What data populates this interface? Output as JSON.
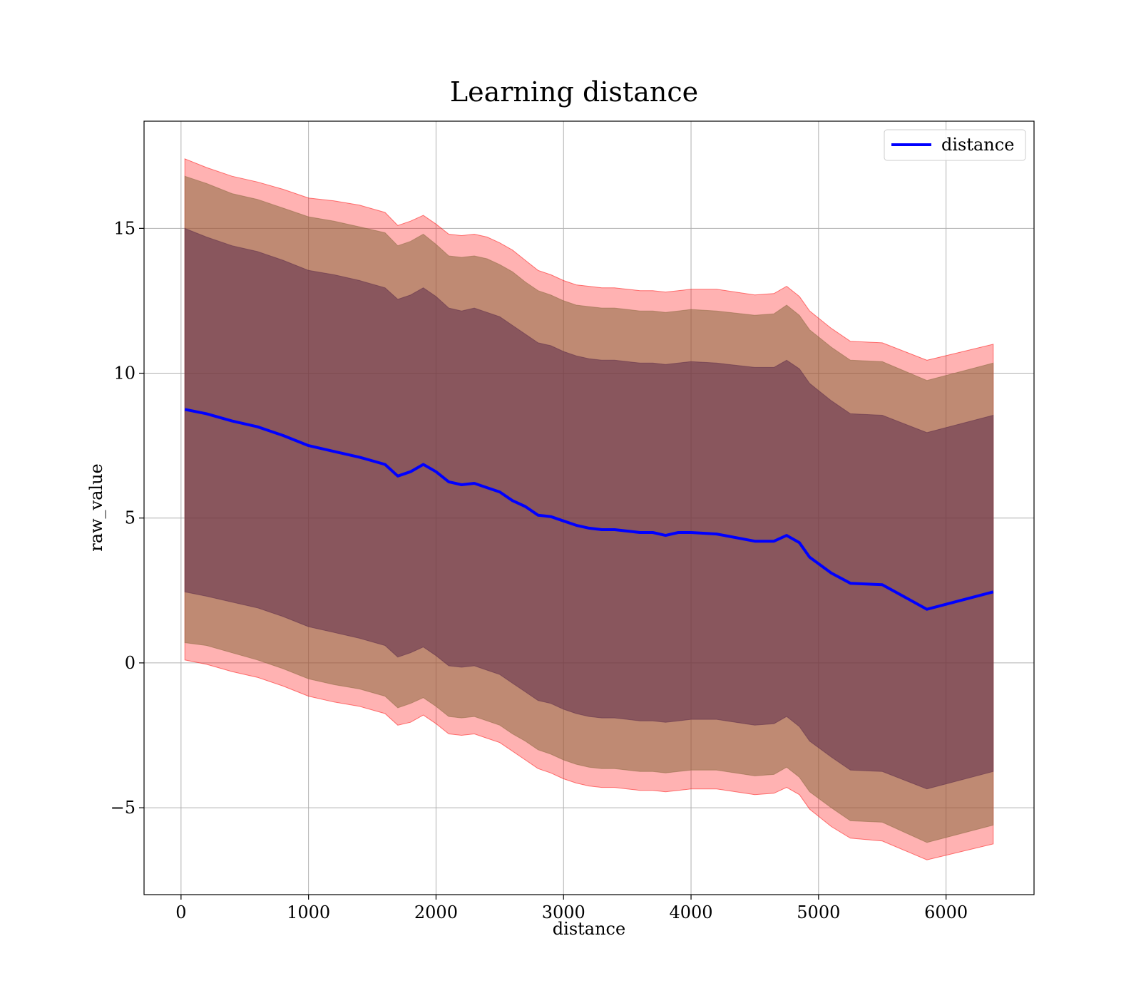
{
  "chart_data": {
    "type": "area",
    "title": "Learning distance",
    "xlabel": "distance",
    "ylabel": "raw_value",
    "xlim": [
      -290,
      6690
    ],
    "ylim": [
      -8,
      18.7
    ],
    "x_ticks": [
      0,
      1000,
      2000,
      3000,
      4000,
      5000,
      6000
    ],
    "x_tick_labels": [
      "0",
      "1000",
      "2000",
      "3000",
      "4000",
      "5000",
      "6000"
    ],
    "y_ticks": [
      -5,
      0,
      5,
      10,
      15
    ],
    "y_tick_labels": [
      "−5",
      "0",
      "5",
      "10",
      "15"
    ],
    "grid": true,
    "legend": {
      "position": "top-right",
      "entries": [
        "distance"
      ]
    },
    "colors": {
      "line": "#0000ff",
      "outer_band": "#ff0000",
      "outer_band_opacity": 0.3,
      "middle_band": "#8b6a3f",
      "inner_band": "#5c2b4a",
      "inner_band_opacity": 0.55
    },
    "x": [
      30,
      200,
      400,
      600,
      800,
      1000,
      1200,
      1400,
      1600,
      1700,
      1800,
      1900,
      2000,
      2100,
      2200,
      2300,
      2400,
      2500,
      2600,
      2700,
      2800,
      2900,
      3000,
      3100,
      3200,
      3300,
      3400,
      3500,
      3600,
      3700,
      3800,
      3900,
      4000,
      4200,
      4500,
      4650,
      4750,
      4850,
      4930,
      5100,
      5250,
      5500,
      5850,
      6370
    ],
    "series": [
      {
        "name": "distance",
        "values": [
          8.75,
          8.6,
          8.35,
          8.15,
          7.85,
          7.5,
          7.3,
          7.1,
          6.85,
          6.45,
          6.6,
          6.85,
          6.6,
          6.25,
          6.15,
          6.2,
          6.05,
          5.9,
          5.6,
          5.4,
          5.1,
          5.05,
          4.9,
          4.75,
          4.65,
          4.6,
          4.6,
          4.55,
          4.5,
          4.5,
          4.4,
          4.5,
          4.5,
          4.45,
          4.2,
          4.2,
          4.4,
          4.15,
          3.65,
          3.1,
          2.75,
          2.7,
          1.85,
          2.45
        ]
      }
    ],
    "bands": [
      {
        "upper": [
          17.4,
          17.1,
          16.8,
          16.6,
          16.35,
          16.05,
          15.95,
          15.8,
          15.55,
          15.1,
          15.25,
          15.45,
          15.15,
          14.8,
          14.75,
          14.8,
          14.7,
          14.5,
          14.25,
          13.9,
          13.55,
          13.4,
          13.2,
          13.05,
          13.0,
          12.95,
          12.95,
          12.9,
          12.85,
          12.85,
          12.8,
          12.85,
          12.9,
          12.9,
          12.7,
          12.75,
          13.0,
          12.65,
          12.15,
          11.55,
          11.1,
          11.05,
          10.45,
          11.0
        ],
        "lower": [
          0.1,
          -0.05,
          -0.3,
          -0.5,
          -0.8,
          -1.15,
          -1.35,
          -1.5,
          -1.75,
          -2.15,
          -2.05,
          -1.8,
          -2.1,
          -2.45,
          -2.5,
          -2.45,
          -2.6,
          -2.75,
          -3.05,
          -3.35,
          -3.65,
          -3.8,
          -4.0,
          -4.15,
          -4.25,
          -4.3,
          -4.3,
          -4.35,
          -4.4,
          -4.4,
          -4.45,
          -4.4,
          -4.35,
          -4.35,
          -4.55,
          -4.5,
          -4.3,
          -4.55,
          -5.05,
          -5.65,
          -6.05,
          -6.15,
          -6.8,
          -6.25
        ]
      },
      {
        "upper": [
          16.8,
          16.55,
          16.2,
          16.0,
          15.7,
          15.4,
          15.25,
          15.05,
          14.85,
          14.4,
          14.55,
          14.8,
          14.45,
          14.05,
          14.0,
          14.05,
          13.95,
          13.75,
          13.5,
          13.15,
          12.85,
          12.7,
          12.5,
          12.35,
          12.3,
          12.25,
          12.25,
          12.2,
          12.15,
          12.15,
          12.1,
          12.15,
          12.2,
          12.15,
          12.0,
          12.05,
          12.35,
          12.0,
          11.5,
          10.9,
          10.45,
          10.4,
          9.75,
          10.35
        ],
        "lower": [
          0.7,
          0.6,
          0.35,
          0.1,
          -0.2,
          -0.55,
          -0.75,
          -0.9,
          -1.15,
          -1.55,
          -1.4,
          -1.2,
          -1.5,
          -1.85,
          -1.9,
          -1.85,
          -2.0,
          -2.15,
          -2.45,
          -2.7,
          -3.0,
          -3.15,
          -3.35,
          -3.5,
          -3.6,
          -3.65,
          -3.65,
          -3.7,
          -3.75,
          -3.75,
          -3.8,
          -3.75,
          -3.7,
          -3.7,
          -3.9,
          -3.85,
          -3.6,
          -3.95,
          -4.45,
          -5.0,
          -5.45,
          -5.5,
          -6.2,
          -5.6
        ]
      },
      {
        "upper": [
          15.0,
          14.7,
          14.4,
          14.2,
          13.9,
          13.55,
          13.4,
          13.2,
          12.95,
          12.55,
          12.7,
          12.95,
          12.65,
          12.25,
          12.15,
          12.25,
          12.1,
          11.95,
          11.65,
          11.35,
          11.05,
          10.95,
          10.75,
          10.6,
          10.5,
          10.45,
          10.45,
          10.4,
          10.35,
          10.35,
          10.3,
          10.35,
          10.4,
          10.35,
          10.2,
          10.2,
          10.45,
          10.15,
          9.65,
          9.05,
          8.6,
          8.55,
          7.95,
          8.55
        ],
        "lower": [
          2.45,
          2.3,
          2.1,
          1.9,
          1.6,
          1.25,
          1.05,
          0.85,
          0.6,
          0.2,
          0.35,
          0.55,
          0.25,
          -0.1,
          -0.15,
          -0.1,
          -0.25,
          -0.4,
          -0.7,
          -1.0,
          -1.3,
          -1.4,
          -1.6,
          -1.75,
          -1.85,
          -1.9,
          -1.9,
          -1.95,
          -2.0,
          -2.0,
          -2.05,
          -2.0,
          -1.95,
          -1.95,
          -2.15,
          -2.1,
          -1.85,
          -2.2,
          -2.7,
          -3.25,
          -3.7,
          -3.75,
          -4.35,
          -3.75
        ]
      }
    ]
  }
}
